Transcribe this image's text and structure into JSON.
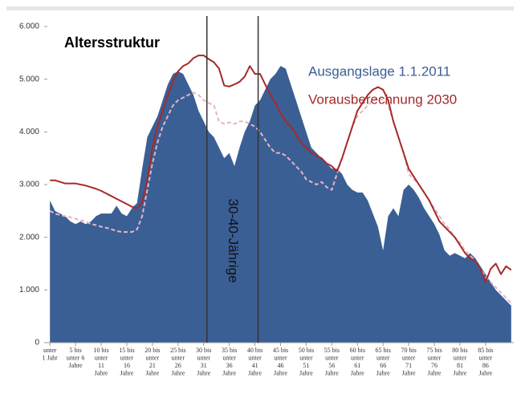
{
  "chart_data": {
    "type": "area",
    "title": "Altersstruktur",
    "categories": [
      "unter\n1 Jahr",
      null,
      null,
      null,
      null,
      "5 bis\nunter 6\nJahre",
      null,
      null,
      null,
      null,
      "10 bis\nunter\n11\nJahre",
      null,
      null,
      null,
      null,
      "15 bis\nunter\n16\nJahre",
      null,
      null,
      null,
      null,
      "20 bis\nunter\n21\nJahre",
      null,
      null,
      null,
      null,
      "25 bis\nunter\n26\nJahre",
      null,
      null,
      null,
      null,
      "30 bis\nunter\n31\nJahre",
      null,
      null,
      null,
      null,
      "35 bis\nunter\n36\nJahre",
      null,
      null,
      null,
      null,
      "40 bis\nunter\n41\nJahre",
      null,
      null,
      null,
      null,
      "45 bis\nunter\n46\nJahre",
      null,
      null,
      null,
      null,
      "50 bis\nunter\n51\nJahre",
      null,
      null,
      null,
      null,
      "55 bis\nunter\n56\nJahre",
      null,
      null,
      null,
      null,
      "60 bis\nunter\n61\nJahre",
      null,
      null,
      null,
      null,
      "65 bis\nunter\n66\nJahre",
      null,
      null,
      null,
      null,
      "70 bis\nunter\n71\nJahre",
      null,
      null,
      null,
      null,
      "75 bis\nunter\n76\nJahre",
      null,
      null,
      null,
      null,
      "80 bis\nunter\n81\nJahre",
      null,
      null,
      null,
      null,
      "85 bis\nunter\n86\nJahre",
      null,
      null,
      null,
      null,
      null
    ],
    "series": [
      {
        "name": "Ausgangslage 1.1.2011",
        "color": "#3a5f95",
        "kind": "area",
        "values": [
          2700,
          2500,
          2450,
          2400,
          2300,
          2250,
          2300,
          2250,
          2300,
          2400,
          2450,
          2450,
          2450,
          2600,
          2450,
          2400,
          2550,
          2650,
          3300,
          3900,
          4100,
          4300,
          4600,
          4900,
          5100,
          5150,
          5100,
          4900,
          4700,
          4400,
          4200,
          4000,
          3900,
          3700,
          3500,
          3600,
          3350,
          3700,
          4000,
          4200,
          4500,
          4600,
          4800,
          5000,
          5100,
          5250,
          5200,
          4900,
          4600,
          4300,
          4000,
          3700,
          3600,
          3500,
          3400,
          3300,
          3300,
          3200,
          3000,
          2900,
          2850,
          2850,
          2700,
          2450,
          2200,
          1750,
          2400,
          2550,
          2400,
          2900,
          3000,
          2900,
          2750,
          2550,
          2400,
          2250,
          2050,
          1750,
          1650,
          1700,
          1650,
          1600,
          1700,
          1600,
          1450,
          1300,
          1150,
          1000,
          900,
          800,
          700
        ]
      },
      {
        "color": "#e8b4c4",
        "kind": "dashed",
        "values": [
          2500,
          2450,
          2420,
          2400,
          2380,
          2350,
          2320,
          2300,
          2250,
          2230,
          2200,
          2180,
          2150,
          2120,
          2100,
          2100,
          2100,
          2150,
          2400,
          2900,
          3400,
          3800,
          4100,
          4300,
          4500,
          4600,
          4650,
          4700,
          4750,
          4700,
          4600,
          4550,
          4500,
          4200,
          4150,
          4180,
          4150,
          4200,
          4200,
          4150,
          4100,
          4000,
          3850,
          3700,
          3600,
          3600,
          3550,
          3450,
          3350,
          3250,
          3100,
          3050,
          3000,
          3050,
          2950,
          2900,
          3200,
          3500,
          3800,
          4100,
          4300,
          4400,
          4500,
          4600,
          4650,
          4600,
          4500,
          4200,
          3900,
          3600,
          3200,
          3100,
          3000,
          2850,
          2700,
          2550,
          2400,
          2250,
          2150,
          2000,
          1900,
          1750,
          1650,
          1550,
          1400,
          1250,
          1150,
          1050,
          950,
          850,
          750
        ]
      },
      {
        "name": "Vorausberechnung 2030",
        "color": "#a52a2a",
        "kind": "line",
        "values": [
          3080,
          3080,
          3050,
          3020,
          3020,
          3020,
          3000,
          2980,
          2950,
          2920,
          2880,
          2830,
          2780,
          2730,
          2680,
          2630,
          2580,
          2550,
          2650,
          3100,
          3700,
          4100,
          4400,
          4700,
          4950,
          5150,
          5250,
          5300,
          5400,
          5450,
          5450,
          5380,
          5320,
          5200,
          4880,
          4860,
          4900,
          4950,
          5050,
          5250,
          5100,
          5100,
          4900,
          4700,
          4550,
          4350,
          4200,
          4100,
          3950,
          3800,
          3700,
          3600,
          3550,
          3500,
          3400,
          3350,
          3250,
          3500,
          3800,
          4100,
          4400,
          4550,
          4700,
          4800,
          4850,
          4800,
          4600,
          4200,
          3900,
          3600,
          3300,
          3150,
          3000,
          2850,
          2700,
          2500,
          2300,
          2200,
          2100,
          2000,
          1850,
          1700,
          1600,
          1550,
          1400,
          1150,
          1400,
          1500,
          1300,
          1450,
          1380
        ]
      }
    ],
    "ylim": [
      0,
      6000
    ],
    "yticks": [
      0,
      {
        "value": 1000,
        "label": "1.000"
      },
      {
        "value": 2000,
        "label": "2.000"
      },
      {
        "value": 3000,
        "label": "3.000"
      },
      {
        "value": 4000,
        "label": "4.000"
      },
      {
        "value": 5000,
        "label": "5.000"
      },
      {
        "value": 6000,
        "label": "6.000"
      }
    ],
    "annotations": [
      {
        "text": "30-40-Jährige",
        "span": [
          30,
          40
        ]
      }
    ]
  }
}
